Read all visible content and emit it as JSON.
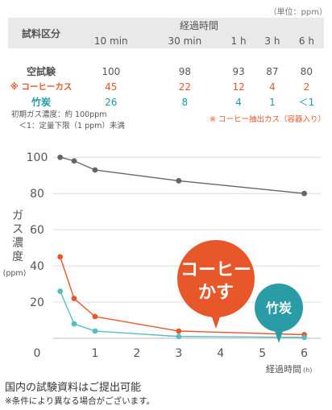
{
  "table": {
    "unit": "（単位：ppm）",
    "corner_label": "試料区分",
    "elapsed_label": "経過時間",
    "columns": [
      "10 min",
      "30 min",
      "1 h",
      "3 h",
      "6 h"
    ],
    "rows": [
      {
        "label": "空試験",
        "values": [
          "100",
          "98",
          "93",
          "87",
          "80"
        ]
      },
      {
        "label": "※ コーヒーカス",
        "values": [
          "45",
          "22",
          "12",
          "4",
          "2"
        ]
      },
      {
        "label": "竹炭",
        "values": [
          "26",
          "8",
          "4",
          "1",
          "＜1"
        ]
      }
    ]
  },
  "notes": {
    "line1": "初期ガス濃度：約 100ppm",
    "line2": "　＜1：定量下限（1 ppm）未満",
    "legend": "※ コーヒー抽出カス（容器入り）"
  },
  "chart_data": {
    "type": "line",
    "x_label": "経過時間",
    "x_unit": "(h)",
    "y_label": "ガス濃度",
    "y_unit": "(ppm)",
    "x_ticks": [
      "0",
      "1",
      "2",
      "3",
      "4",
      "5",
      "6"
    ],
    "y_ticks": [
      "20",
      "40",
      "60",
      "80",
      "100"
    ],
    "xlim": [
      0,
      6.2
    ],
    "ylim": [
      0,
      105
    ],
    "x": [
      0.1667,
      0.5,
      1,
      3,
      6
    ],
    "series": [
      {
        "name": "空試験",
        "color": "#666666",
        "values": [
          100,
          98,
          93,
          87,
          80
        ]
      },
      {
        "name": "コーヒーかす",
        "color": "#e8572a",
        "values": [
          45,
          22,
          12,
          4,
          2
        ]
      },
      {
        "name": "竹炭",
        "color": "#5bbcc3",
        "values": [
          26,
          8,
          4,
          1,
          0.5
        ]
      }
    ],
    "callouts": [
      {
        "label_line1": "コーヒー",
        "label_line2": "かす",
        "color": "#e8572a"
      },
      {
        "label": "竹炭",
        "color": "#2a9ca6"
      }
    ]
  },
  "footer": {
    "line1": "国内の試験資料はご提出可能",
    "line2": "※条件により異なる場合がございます。"
  }
}
